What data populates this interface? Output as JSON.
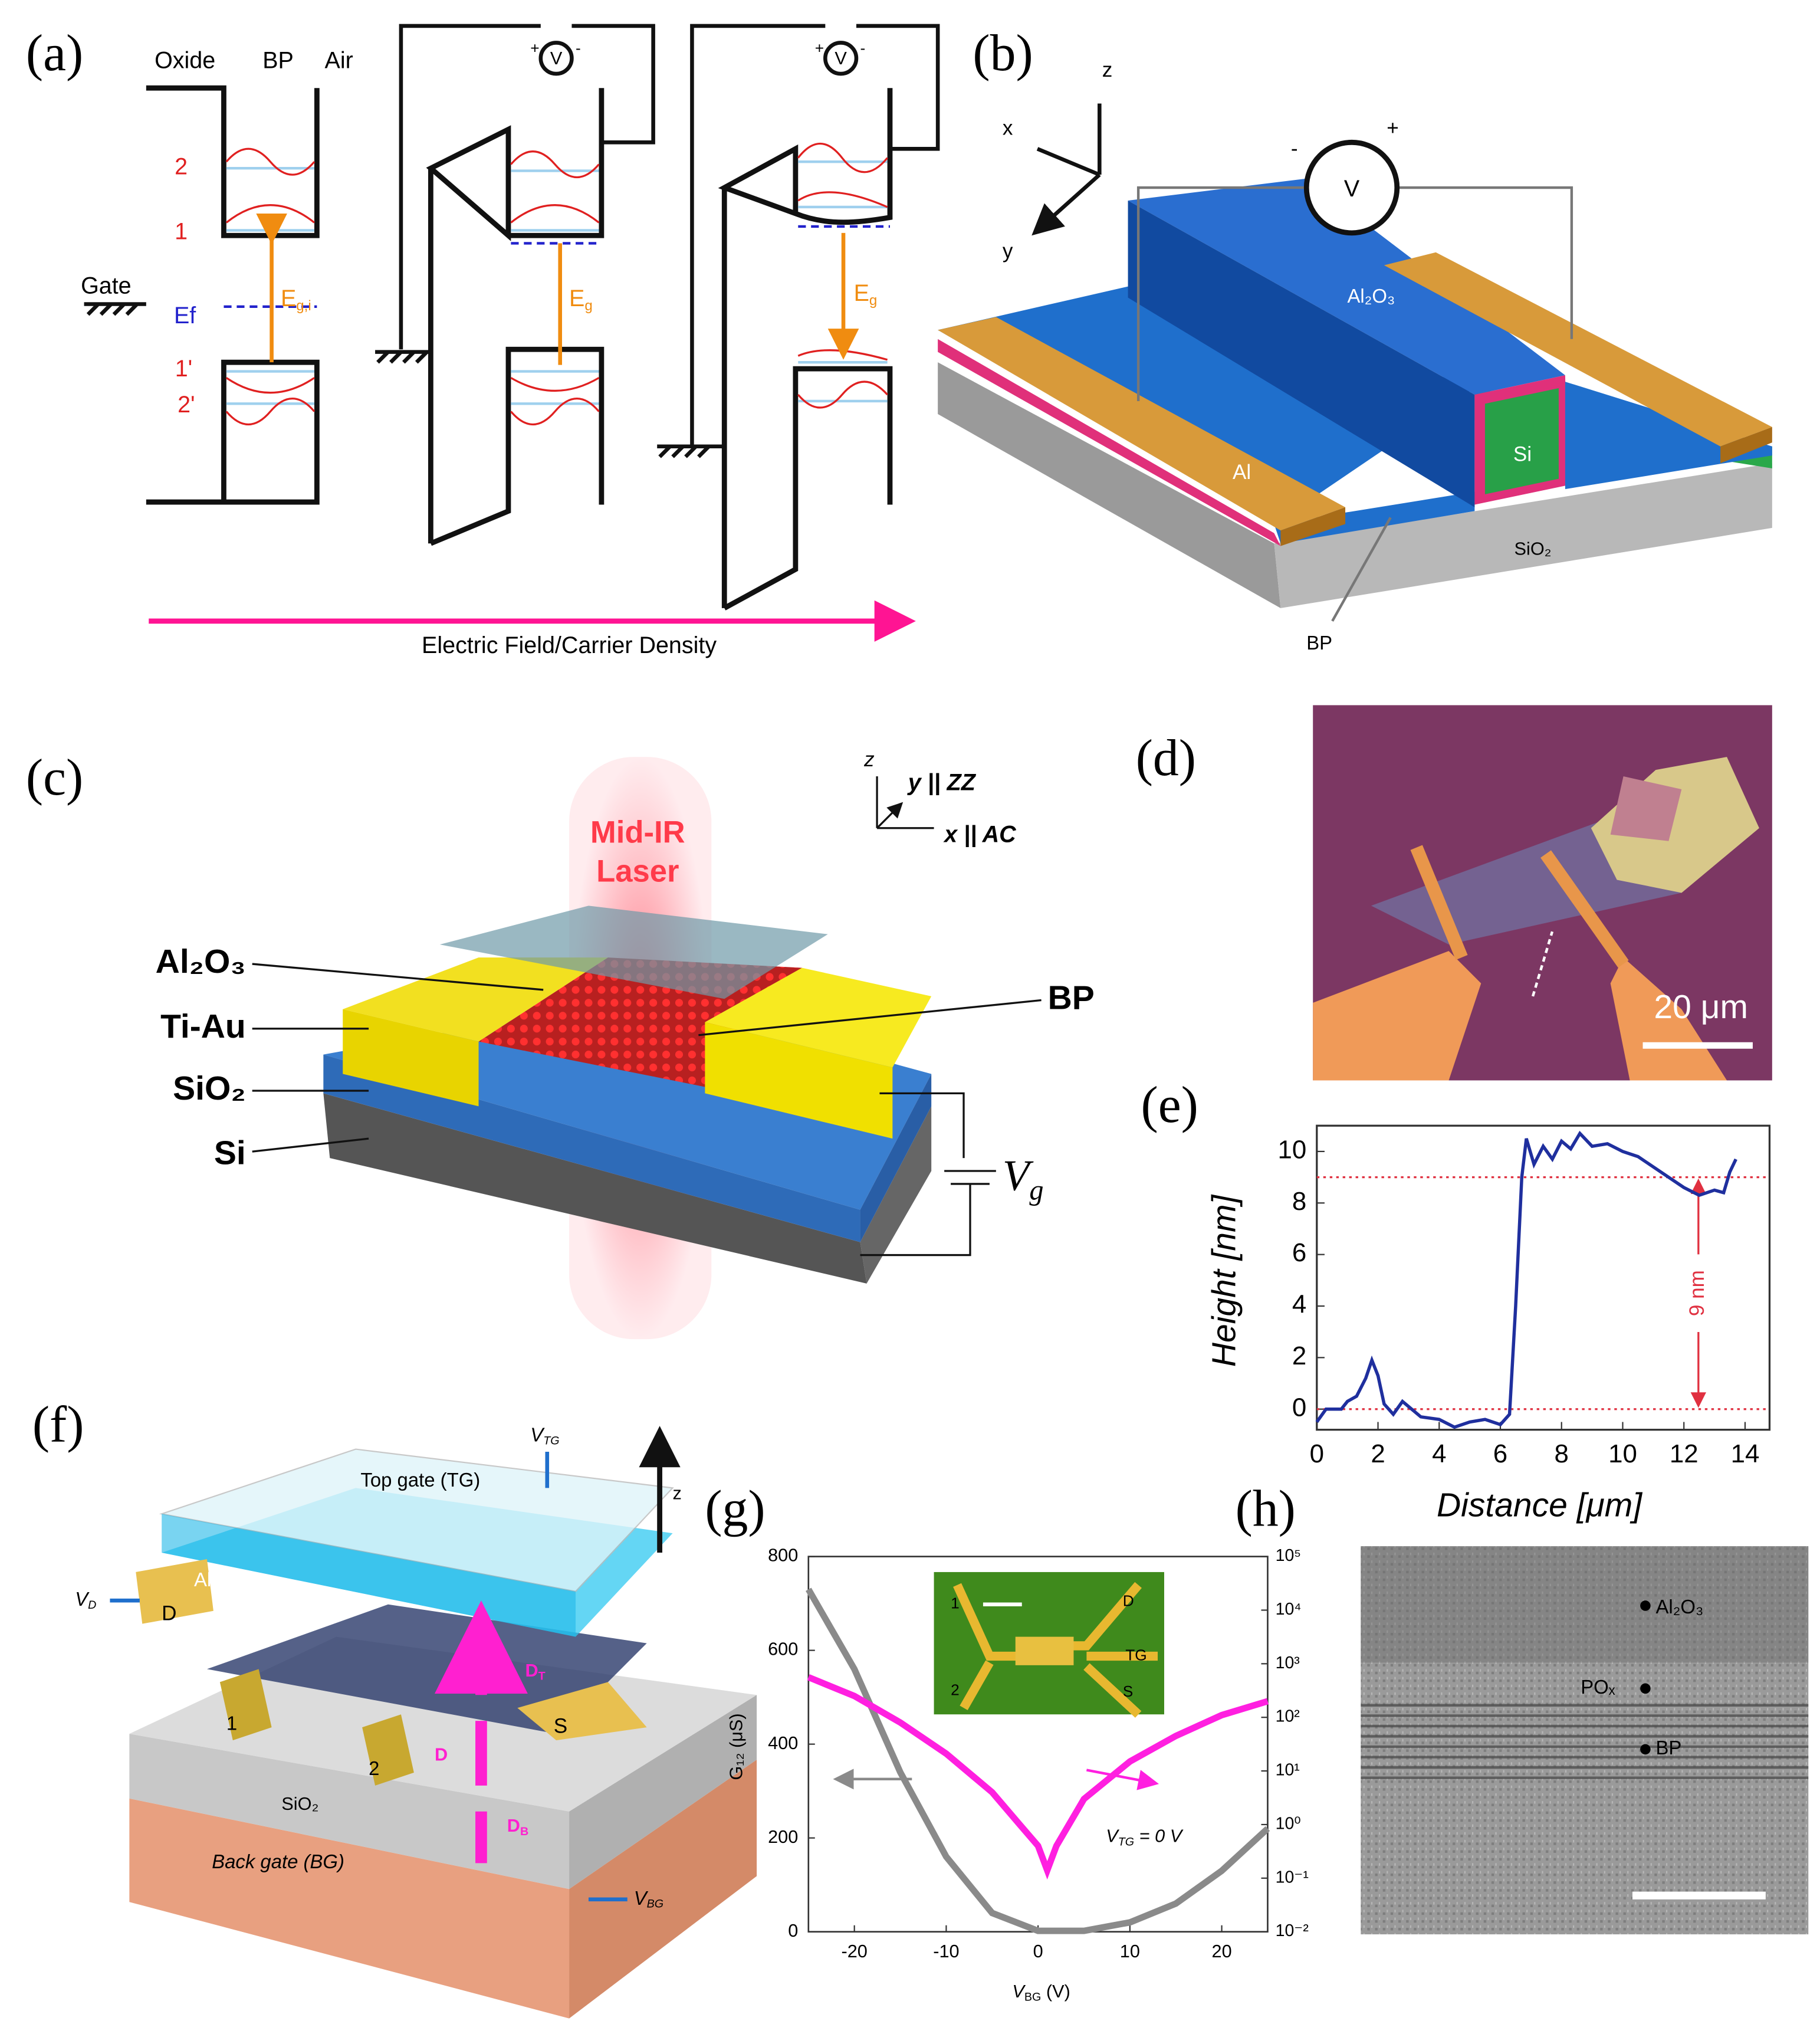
{
  "panels": {
    "a": {
      "label": "(a)",
      "headers": [
        "Oxide",
        "BP",
        "Air"
      ],
      "gate": "Gate",
      "fermi": "Ef",
      "levels": [
        "2",
        "1",
        "1'",
        "2'"
      ],
      "gaps": [
        {
          "main": "E",
          "sub": "g,i"
        },
        {
          "main": "E",
          "sub": "g"
        },
        {
          "main": "E",
          "sub": "g"
        }
      ],
      "meter": {
        "plus": "+",
        "symbol": "V",
        "minus": "-"
      },
      "axis_label": "Electric Field/Carrier Density"
    },
    "b": {
      "label": "(b)",
      "axes": [
        "x",
        "y",
        "z"
      ],
      "meter": {
        "minus": "-",
        "symbol": "V",
        "plus": "+"
      },
      "layers": [
        "Al₂O₃",
        "Si",
        "Al",
        "SiO₂",
        "BP"
      ]
    },
    "c": {
      "label": "(c)",
      "laser": [
        "Mid-IR",
        "Laser"
      ],
      "axes": [
        "z",
        "y || ZZ",
        "x || AC"
      ],
      "layers": [
        "Al₂O₃",
        "Ti-Au",
        "SiO₂",
        "Si"
      ],
      "bp": "BP",
      "gate": {
        "main": "V",
        "sub": "g"
      }
    },
    "d": {
      "label": "(d)",
      "scale_bar": "20 μm"
    },
    "e": {
      "label": "(e)",
      "type": "line",
      "xlabel": "Distance [μm]",
      "ylabel": "Height [nm]",
      "xlim": [
        0,
        14.8
      ],
      "xticks": [
        0,
        2,
        4,
        6,
        8,
        10,
        12,
        14
      ],
      "ylim": [
        -0.8,
        11
      ],
      "yticks": [
        0,
        2,
        4,
        6,
        8,
        10
      ],
      "ref_lines": [
        0,
        9
      ],
      "annotation": "9 nm",
      "color": "#1f2f9e",
      "x": [
        0,
        0.3,
        0.8,
        1.0,
        1.3,
        1.6,
        1.8,
        2.0,
        2.2,
        2.5,
        2.8,
        3.0,
        3.4,
        4.0,
        4.5,
        5.0,
        5.5,
        6.0,
        6.3,
        6.5,
        6.7,
        6.85,
        7.1,
        7.4,
        7.7,
        8.0,
        8.3,
        8.6,
        9.0,
        9.5,
        10.0,
        10.5,
        11.0,
        11.5,
        12.0,
        12.5,
        13.0,
        13.3,
        13.5,
        13.7
      ],
      "values": [
        -0.5,
        0,
        0,
        0.3,
        0.5,
        1.2,
        1.9,
        1.3,
        0.2,
        -0.2,
        0.3,
        0.1,
        -0.3,
        -0.4,
        -0.7,
        -0.5,
        -0.4,
        -0.6,
        -0.2,
        4,
        9,
        10.5,
        9.5,
        10.2,
        9.7,
        10.4,
        10.1,
        10.7,
        10.2,
        10.3,
        10.0,
        9.8,
        9.4,
        9.0,
        8.6,
        8.3,
        8.5,
        8.4,
        9.2,
        9.7
      ]
    },
    "f": {
      "label": "(f)",
      "top_gate": "Top gate (TG)",
      "oxide": "Al₂O₃",
      "sio2": "SiO₂",
      "back_gate": "Back gate (BG)",
      "contacts": [
        "D",
        "S",
        "1",
        "2"
      ],
      "z": "z",
      "voltages": [
        {
          "main": "V",
          "sub": "TG"
        },
        {
          "main": "V",
          "sub": "D"
        },
        {
          "main": "V",
          "sub": "BG"
        }
      ],
      "fields": [
        {
          "main": "D",
          "sub": "T"
        },
        {
          "main": "D",
          "sub": ""
        },
        {
          "main": "D",
          "sub": "B"
        }
      ]
    },
    "g": {
      "label": "(g)",
      "type": "line",
      "xlabel": {
        "main": "V",
        "sub": "BG",
        "unit": " (V)"
      },
      "ylabel": "G₁₂ (μS)",
      "annotation": {
        "main": "V",
        "sub": "TG",
        "rest": " = 0 V"
      },
      "inset": [
        "1",
        "2",
        "D",
        "TG",
        "S"
      ],
      "xlim": [
        -25,
        25
      ],
      "xticks": [
        -20,
        -10,
        0,
        10,
        20
      ],
      "ylim": [
        0,
        800
      ],
      "yticks": [
        0,
        200,
        400,
        600,
        800
      ],
      "y2lim": [
        0.01,
        100000
      ],
      "y2log": true,
      "y2ticks": [
        {
          "value": 0.01,
          "label": "10⁻²"
        },
        {
          "value": 0.1,
          "label": "10⁻¹"
        },
        {
          "value": 1,
          "label": "10⁰"
        },
        {
          "value": 10,
          "label": "10¹"
        },
        {
          "value": 100,
          "label": "10²"
        },
        {
          "value": 1000,
          "label": "10³"
        },
        {
          "value": 10000,
          "label": "10⁴"
        },
        {
          "value": 100000,
          "label": "10⁵"
        }
      ],
      "series": [
        {
          "color": "#8a8a8a",
          "axis": "y",
          "x": [
            -25,
            -20,
            -15,
            -10,
            -5,
            0,
            5,
            10,
            15,
            20,
            25
          ],
          "values": [
            730,
            560,
            340,
            160,
            40,
            2,
            2,
            20,
            60,
            130,
            220
          ]
        },
        {
          "color": "#ff1fe0",
          "axis": "y2",
          "x": [
            -25,
            -20,
            -15,
            -10,
            -5,
            -2,
            0,
            1,
            2,
            5,
            10,
            15,
            20,
            25
          ],
          "values": [
            560,
            250,
            80,
            21,
            4,
            1,
            0.4,
            0.14,
            0.4,
            3,
            15,
            45,
            110,
            200
          ]
        }
      ]
    },
    "h": {
      "label": "(h)",
      "labels": [
        "Al₂O₃",
        "POₓ",
        "BP"
      ]
    }
  }
}
